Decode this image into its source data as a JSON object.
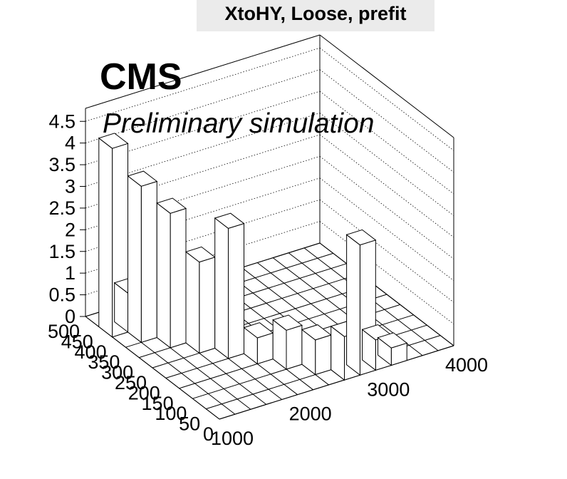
{
  "header": {
    "title": "XtoHY, Loose, prefit"
  },
  "labels": {
    "experiment": "CMS",
    "status": "Preliminary simulation"
  },
  "chart_data": {
    "type": "lego3d",
    "title": "XtoHY, Loose, prefit",
    "xlabel": "",
    "ylabel": "",
    "zlabel": "",
    "xlim": [
      1000,
      4000
    ],
    "ylim": [
      0,
      500
    ],
    "zlim": [
      0,
      4.8
    ],
    "x_ticks": [
      "1000",
      "2000",
      "3000",
      "4000"
    ],
    "y_ticks": [
      "0",
      "50",
      "100",
      "150",
      "200",
      "250",
      "300",
      "350",
      "400",
      "450",
      "500"
    ],
    "z_ticks": [
      "0",
      "0.5",
      "1",
      "1.5",
      "2",
      "2.5",
      "3",
      "3.5",
      "4",
      "4.5"
    ],
    "bins": [
      {
        "x": [
          1000,
          1200
        ],
        "y": [
          400,
          450
        ],
        "value": 4.35
      },
      {
        "x": [
          1200,
          1400
        ],
        "y": [
          400,
          450
        ],
        "value": 0.9
      },
      {
        "x": [
          1200,
          1400
        ],
        "y": [
          350,
          400
        ],
        "value": 3.6
      },
      {
        "x": [
          1400,
          1600
        ],
        "y": [
          300,
          350
        ],
        "value": 3.1
      },
      {
        "x": [
          1600,
          1800
        ],
        "y": [
          250,
          300
        ],
        "value": 2.1
      },
      {
        "x": [
          1800,
          2000
        ],
        "y": [
          200,
          250
        ],
        "value": 3.0
      },
      {
        "x": [
          2000,
          2200
        ],
        "y": [
          150,
          200
        ],
        "value": 0.6
      },
      {
        "x": [
          2200,
          2400
        ],
        "y": [
          100,
          150
        ],
        "value": 0.9
      },
      {
        "x": [
          2400,
          2600
        ],
        "y": [
          50,
          100
        ],
        "value": 0.8
      },
      {
        "x": [
          2600,
          2800
        ],
        "y": [
          0,
          50
        ],
        "value": 1.0
      },
      {
        "x": [
          2800,
          3000
        ],
        "y": [
          0,
          50
        ],
        "value": 3.0
      },
      {
        "x": [
          3000,
          3200
        ],
        "y": [
          0,
          50
        ],
        "value": 0.7
      },
      {
        "x": [
          3200,
          3400
        ],
        "y": [
          0,
          50
        ],
        "value": 0.4
      }
    ],
    "grid": true,
    "legend": "none"
  }
}
